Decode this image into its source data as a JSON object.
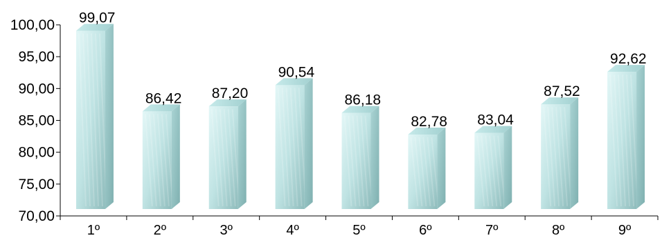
{
  "chart_data": {
    "type": "bar",
    "categories": [
      "1º",
      "2º",
      "3º",
      "4º",
      "5º",
      "6º",
      "7º",
      "8º",
      "9º"
    ],
    "values": [
      99.07,
      86.42,
      87.2,
      90.54,
      86.18,
      82.78,
      83.04,
      87.52,
      92.62
    ],
    "value_labels": [
      "99,07",
      "86,42",
      "87,20",
      "90,54",
      "86,18",
      "82,78",
      "83,04",
      "87,52",
      "92,62"
    ],
    "y_ticks": [
      "70,00",
      "75,00",
      "80,00",
      "85,00",
      "90,00",
      "95,00",
      "100,00"
    ],
    "ylim": [
      70,
      100
    ],
    "grid": false,
    "legend": "none",
    "bar_style": "3d",
    "colors": {
      "front_light": "#d8f3f3",
      "front_dark": "#9cc8c8",
      "side": "#8fbcbc",
      "top": "#b4dede",
      "axis": "#000000"
    }
  }
}
